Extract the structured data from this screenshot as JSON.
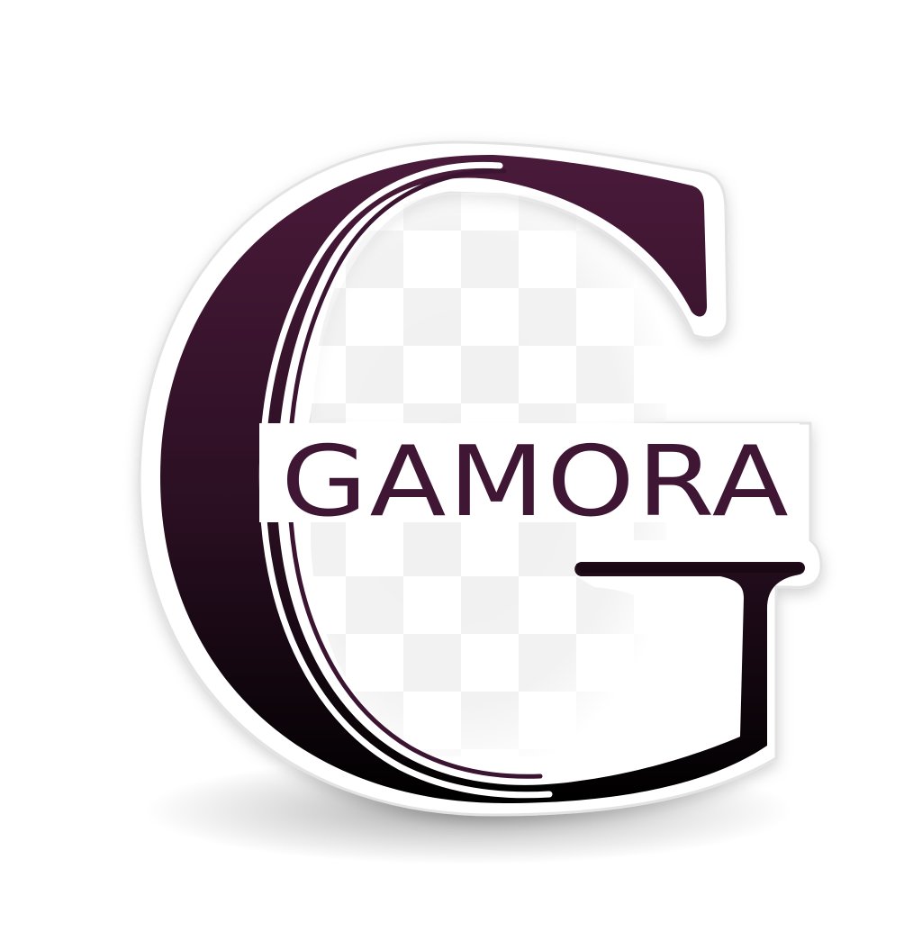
{
  "logo": {
    "wordmark": "GAMORA",
    "emblem": "monogram-g",
    "colors": {
      "letter_top": "#4a1a3a",
      "letter_bottom": "#000000",
      "wordmark": "#3f1633",
      "background": "#ffffff",
      "checker_light": "#ffffff",
      "checker_dark": "#f0f0f0",
      "sticker_border": "#e3e3e3"
    }
  }
}
